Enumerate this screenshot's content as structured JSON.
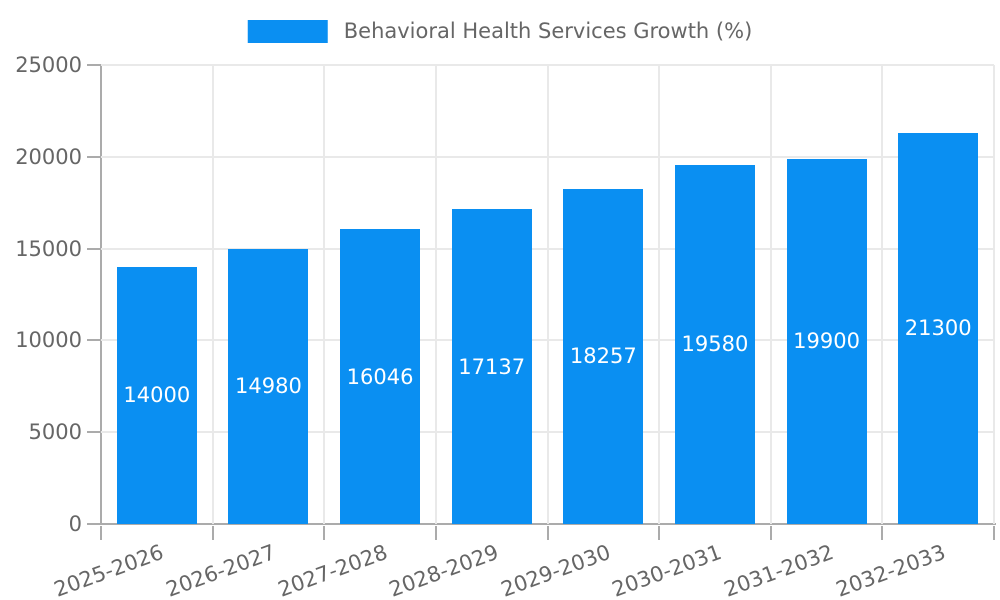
{
  "legend": {
    "items": [
      {
        "label": "Behavioral Health Services Growth (%)",
        "color": "#0a8ff2"
      }
    ]
  },
  "chart_data": {
    "type": "bar",
    "title": "",
    "categories": [
      "2025-2026",
      "2026-2027",
      "2027-2028",
      "2028-2029",
      "2029-2030",
      "2030-2031",
      "2031-2032",
      "2032-2033"
    ],
    "series": [
      {
        "name": "Behavioral Health Services Growth (%)",
        "values": [
          14000,
          14980,
          16046,
          17137,
          18257,
          19580,
          19900,
          21300
        ],
        "color": "#0a8ff2"
      }
    ],
    "value_labels": [
      "14000",
      "14980",
      "16046",
      "17137",
      "18257",
      "19580",
      "19900",
      "21300"
    ],
    "value_label_position": "inside-center",
    "xlabel": "",
    "ylabel": "",
    "ylim": [
      0,
      25000
    ],
    "yticks": [
      0,
      5000,
      10000,
      15000,
      20000,
      25000
    ],
    "ytick_labels": [
      "0",
      "5000",
      "10000",
      "15000",
      "20000",
      "25000"
    ],
    "grid": true,
    "legend_position": "top-center",
    "x_label_rotation_deg": -20
  },
  "colors": {
    "bar": "#0a8ff2",
    "grid_line": "#e9e9e9",
    "axis_line": "#ababab",
    "tick_text": "#666666",
    "legend_text": "#666666",
    "value_label_text": "#ffffff",
    "background": "#ffffff"
  }
}
